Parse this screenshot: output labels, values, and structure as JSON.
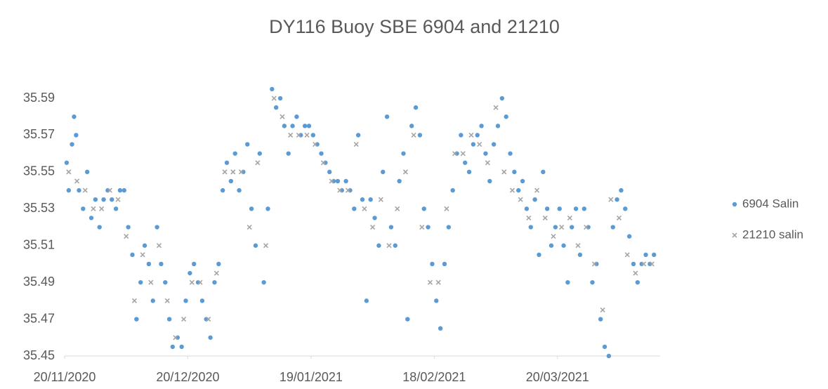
{
  "chart_data": {
    "type": "scatter",
    "title": "DY116 Buoy SBE 6904 and 21210",
    "xlim": [
      44155,
      44300
    ],
    "xticks": [
      {
        "value": 44155,
        "label": "20/11/2020"
      },
      {
        "value": 44185,
        "label": "20/12/2020"
      },
      {
        "value": 44215,
        "label": "19/01/2021"
      },
      {
        "value": 44245,
        "label": "18/02/2021"
      },
      {
        "value": 44275,
        "label": "20/03/2021"
      }
    ],
    "ylim": [
      35.45,
      35.61
    ],
    "yticks": [
      35.45,
      35.47,
      35.49,
      35.51,
      35.53,
      35.55,
      35.57,
      35.59
    ],
    "grid": false,
    "legend": "right",
    "series": [
      {
        "name": "6904 Salin",
        "color": "#5b9bd5",
        "marker": "circle",
        "x": [
          44155.5,
          44156,
          44156.8,
          44157.3,
          44157.8,
          44158.5,
          44159.5,
          44160.5,
          44161.5,
          44162.5,
          44163.5,
          44164.5,
          44165.5,
          44166.5,
          44167.5,
          44168.5,
          44169.5,
          44170.5,
          44171.5,
          44172.5,
          44173.5,
          44174.5,
          44175.5,
          44176.5,
          44177.5,
          44178.5,
          44179.5,
          44180.5,
          44181.3,
          44182.5,
          44183.5,
          44184.5,
          44185.5,
          44186.5,
          44187.5,
          44188.5,
          44189.5,
          44190.5,
          44191.5,
          44192.5,
          44193.5,
          44194.5,
          44195.5,
          44196.5,
          44197.5,
          44198.5,
          44199.5,
          44200.5,
          44201.5,
          44202.5,
          44203.5,
          44204.5,
          44205.5,
          44206.5,
          44207.5,
          44208.5,
          44209.5,
          44210.5,
          44211.5,
          44212.5,
          44213.5,
          44214.5,
          44215.5,
          44216.5,
          44217.5,
          44218.5,
          44219.5,
          44220.5,
          44221.5,
          44222.5,
          44223.5,
          44224.5,
          44225.5,
          44226.5,
          44227.5,
          44228.5,
          44229.5,
          44230.5,
          44231.5,
          44232.5,
          44233.5,
          44234.5,
          44235.5,
          44236.5,
          44237.5,
          44238.5,
          44239.5,
          44240.5,
          44241.5,
          44242.5,
          44243.5,
          44244.5,
          44245.5,
          44246.5,
          44247.5,
          44248.5,
          44249.5,
          44250.5,
          44251.5,
          44252.5,
          44253.5,
          44254.5,
          44255.5,
          44256.5,
          44257.5,
          44258.5,
          44259.5,
          44260.5,
          44261.5,
          44262.5,
          44263.5,
          44264.5,
          44265.5,
          44266.5,
          44267.5,
          44268.5,
          44269.5,
          44270.5,
          44271.5,
          44272.5,
          44273.5,
          44274.5,
          44275.5,
          44276.5,
          44277.5,
          44278.5,
          44279.5,
          44280.5,
          44281.5,
          44282.5,
          44283.5,
          44284.5,
          44285.5,
          44286.5,
          44287.5,
          44288.5,
          44289.5,
          44290.5,
          44291.5,
          44292.5,
          44293.5,
          44294.5,
          44295.5,
          44296.5,
          44297.5,
          44298.5
        ],
        "values": [
          35.555,
          35.54,
          35.565,
          35.58,
          35.57,
          35.54,
          35.53,
          35.55,
          35.525,
          35.535,
          35.52,
          35.535,
          35.54,
          35.535,
          35.53,
          35.54,
          35.54,
          35.52,
          35.505,
          35.47,
          35.49,
          35.51,
          35.5,
          35.48,
          35.52,
          35.5,
          35.49,
          35.47,
          35.455,
          35.46,
          35.455,
          35.48,
          35.495,
          35.5,
          35.49,
          35.48,
          35.47,
          35.46,
          35.49,
          35.5,
          35.54,
          35.555,
          35.545,
          35.56,
          35.54,
          35.55,
          35.565,
          35.53,
          35.51,
          35.56,
          35.49,
          35.53,
          35.595,
          35.585,
          35.59,
          35.575,
          35.56,
          35.575,
          35.58,
          35.57,
          35.575,
          35.575,
          35.57,
          35.565,
          35.56,
          35.555,
          35.55,
          35.545,
          35.545,
          35.54,
          35.545,
          35.54,
          35.53,
          35.57,
          35.535,
          35.48,
          35.535,
          35.525,
          35.51,
          35.55,
          35.58,
          35.52,
          35.51,
          35.545,
          35.56,
          35.47,
          35.575,
          35.585,
          35.57,
          35.53,
          35.52,
          35.5,
          35.48,
          35.465,
          35.5,
          35.52,
          35.54,
          35.56,
          35.57,
          35.555,
          35.55,
          35.565,
          35.57,
          35.575,
          35.56,
          35.545,
          35.565,
          35.575,
          35.59,
          35.58,
          35.56,
          35.55,
          35.54,
          35.545,
          35.53,
          35.52,
          35.535,
          35.505,
          35.55,
          35.53,
          35.51,
          35.52,
          35.53,
          35.51,
          35.49,
          35.52,
          35.53,
          35.505,
          35.53,
          35.52,
          35.49,
          35.5,
          35.47,
          35.455,
          35.45,
          35.52,
          35.535,
          35.54,
          35.53,
          35.515,
          35.5,
          35.49,
          35.5,
          35.505,
          35.5,
          35.505
        ]
      },
      {
        "name": "21210 salin",
        "color": "#a5a5a5",
        "marker": "x",
        "x": [
          44156,
          44158,
          44160,
          44162,
          44164,
          44166,
          44168,
          44170,
          44172,
          44174,
          44176,
          44178,
          44180,
          44182,
          44184,
          44186,
          44188,
          44190,
          44192,
          44194,
          44196,
          44198,
          44200,
          44202,
          44204,
          44206,
          44208,
          44210,
          44212,
          44214,
          44216,
          44218,
          44220,
          44222,
          44224,
          44226,
          44228,
          44230,
          44232,
          44234,
          44236,
          44238,
          44240,
          44242,
          44244,
          44246,
          44248,
          44250,
          44252,
          44254,
          44256,
          44258,
          44260,
          44262,
          44264,
          44266,
          44268,
          44270,
          44272,
          44274,
          44276,
          44278,
          44280,
          44282,
          44284,
          44286,
          44288,
          44290,
          44292,
          44294,
          44296,
          44298
        ],
        "values": [
          35.55,
          35.545,
          35.54,
          35.53,
          35.53,
          35.54,
          35.535,
          35.515,
          35.48,
          35.505,
          35.49,
          35.51,
          35.48,
          35.46,
          35.47,
          35.49,
          35.49,
          35.47,
          35.495,
          35.55,
          35.55,
          35.55,
          35.52,
          35.555,
          35.51,
          35.59,
          35.58,
          35.57,
          35.57,
          35.57,
          35.565,
          35.555,
          35.545,
          35.54,
          35.54,
          35.565,
          35.53,
          35.52,
          35.535,
          35.51,
          35.53,
          35.55,
          35.57,
          35.52,
          35.49,
          35.49,
          35.53,
          35.56,
          35.56,
          35.57,
          35.565,
          35.555,
          35.585,
          35.55,
          35.54,
          35.535,
          35.525,
          35.54,
          35.525,
          35.515,
          35.52,
          35.525,
          35.51,
          35.52,
          35.5,
          35.475,
          35.535,
          35.525,
          35.505,
          35.495,
          35.5,
          35.5
        ]
      }
    ]
  }
}
